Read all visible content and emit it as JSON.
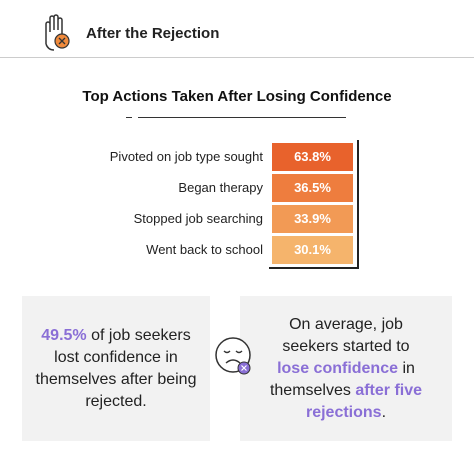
{
  "header": {
    "title": "After the Rejection"
  },
  "table": {
    "title": "Top Actions Taken After Losing Confidence",
    "rows": [
      [
        "Pivoted on job type sought",
        "63.8%"
      ],
      [
        "Began therapy",
        "36.5%"
      ],
      [
        "Stopped job searching",
        "33.9%"
      ],
      [
        "Went back to school",
        "30.1%"
      ]
    ]
  },
  "callouts": [
    {
      "parts": [
        "49.5%",
        " of job seekers lost confidence in themselves after being rejected."
      ]
    },
    {
      "parts": [
        "On average, job seekers started to ",
        "lose confidence",
        " in themselves ",
        "after five rejections",
        "."
      ]
    }
  ]
}
